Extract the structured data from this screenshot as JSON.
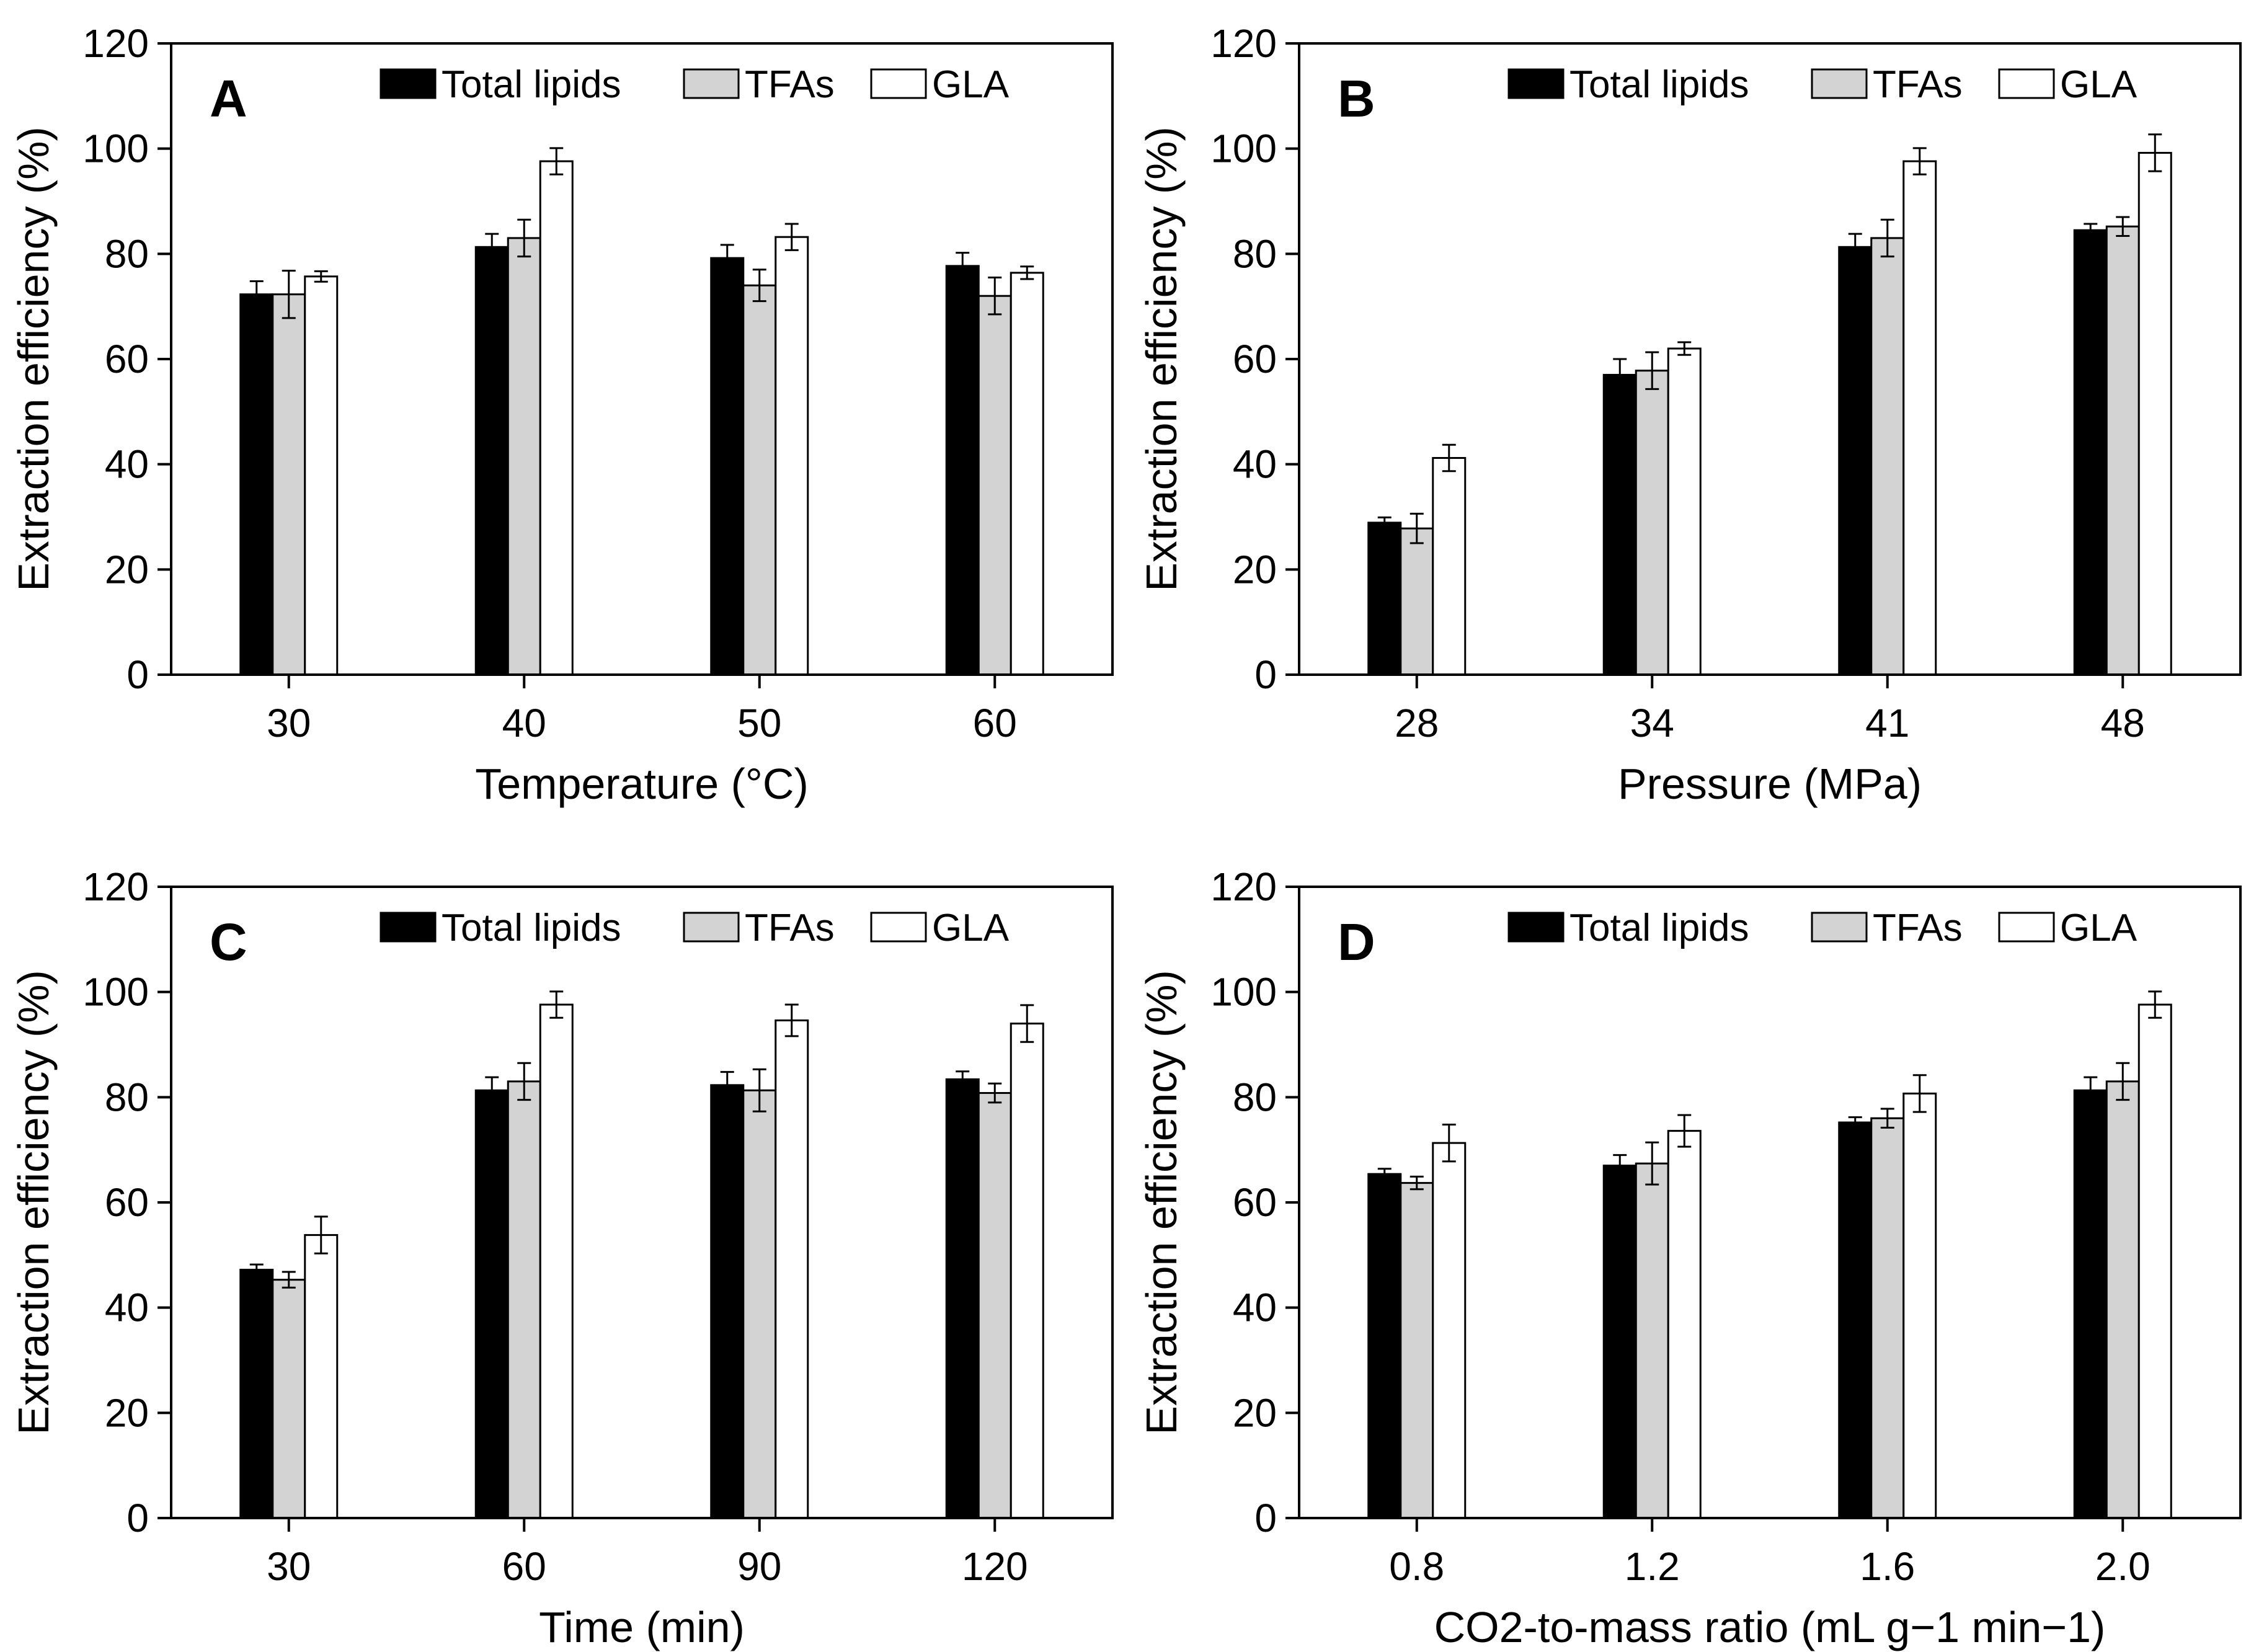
{
  "figure_caption": "",
  "chart_data": [
    {
      "id": "A",
      "type": "bar",
      "panel_label": "A",
      "title": "",
      "xlabel": "Temperature (°C)",
      "ylabel": "Extraction efficiency (%)",
      "ylim": [
        0,
        120
      ],
      "yticks": [
        0,
        20,
        40,
        60,
        80,
        100,
        120
      ],
      "categories": [
        "30",
        "40",
        "50",
        "60"
      ],
      "legend": "top-right",
      "grid": false,
      "series": [
        {
          "name": "Total lipids",
          "color": "#000000",
          "values": [
            72.3,
            81.3,
            79.2,
            77.7
          ],
          "errors": [
            2.5,
            2.5,
            2.5,
            2.5
          ]
        },
        {
          "name": "TFAs",
          "color": "#d3d3d3",
          "values": [
            72.3,
            83.0,
            74.0,
            72.0
          ],
          "errors": [
            4.5,
            3.5,
            3.0,
            3.5
          ]
        },
        {
          "name": "GLA",
          "color": "#ffffff",
          "values": [
            75.7,
            97.6,
            83.2,
            76.4
          ],
          "errors": [
            1.0,
            2.5,
            2.5,
            1.2
          ]
        }
      ]
    },
    {
      "id": "B",
      "type": "bar",
      "panel_label": "B",
      "title": "",
      "xlabel": "Pressure (MPa)",
      "ylabel": "Extraction efficiency (%)",
      "ylim": [
        0,
        120
      ],
      "yticks": [
        0,
        20,
        40,
        60,
        80,
        100,
        120
      ],
      "categories": [
        "28",
        "34",
        "41",
        "48"
      ],
      "legend": "top-right",
      "grid": false,
      "series": [
        {
          "name": "Total lipids",
          "color": "#000000",
          "values": [
            28.9,
            57.0,
            81.3,
            84.5
          ],
          "errors": [
            1.0,
            3.0,
            2.5,
            1.2
          ]
        },
        {
          "name": "TFAs",
          "color": "#d3d3d3",
          "values": [
            27.8,
            57.8,
            83.0,
            85.2
          ],
          "errors": [
            2.8,
            3.5,
            3.5,
            1.8
          ]
        },
        {
          "name": "GLA",
          "color": "#ffffff",
          "values": [
            41.2,
            62.0,
            97.6,
            99.2
          ],
          "errors": [
            2.5,
            1.2,
            2.5,
            3.5
          ]
        }
      ]
    },
    {
      "id": "C",
      "type": "bar",
      "panel_label": "C",
      "title": "",
      "xlabel": "Time (min)",
      "ylabel": "Extraction efficiency (%)",
      "ylim": [
        0,
        120
      ],
      "yticks": [
        0,
        20,
        40,
        60,
        80,
        100,
        120
      ],
      "categories": [
        "30",
        "60",
        "90",
        "120"
      ],
      "legend": "top-right",
      "grid": false,
      "series": [
        {
          "name": "Total lipids",
          "color": "#000000",
          "values": [
            47.2,
            81.3,
            82.3,
            83.4
          ],
          "errors": [
            1.0,
            2.5,
            2.5,
            1.5
          ]
        },
        {
          "name": "TFAs",
          "color": "#d3d3d3",
          "values": [
            45.3,
            83.0,
            81.3,
            80.8
          ],
          "errors": [
            1.5,
            3.5,
            4.0,
            1.8
          ]
        },
        {
          "name": "GLA",
          "color": "#ffffff",
          "values": [
            53.8,
            97.6,
            94.6,
            94.0
          ],
          "errors": [
            3.5,
            2.5,
            3.0,
            3.5
          ]
        }
      ]
    },
    {
      "id": "D",
      "type": "bar",
      "panel_label": "D",
      "title": "",
      "xlabel": "CO2-to-mass ratio (mL g−1 min−1)",
      "ylabel": "Extraction efficiency (%)",
      "ylim": [
        0,
        120
      ],
      "yticks": [
        0,
        20,
        40,
        60,
        80,
        100,
        120
      ],
      "categories": [
        "0.8",
        "1.2",
        "1.6",
        "2.0"
      ],
      "legend": "top-right",
      "grid": false,
      "series": [
        {
          "name": "Total lipids",
          "color": "#000000",
          "values": [
            65.4,
            67.0,
            75.2,
            81.3
          ],
          "errors": [
            1.0,
            2.0,
            1.0,
            2.5
          ]
        },
        {
          "name": "TFAs",
          "color": "#d3d3d3",
          "values": [
            63.7,
            67.4,
            76.0,
            83.0
          ],
          "errors": [
            1.2,
            4.0,
            1.8,
            3.5
          ]
        },
        {
          "name": "GLA",
          "color": "#ffffff",
          "values": [
            71.3,
            73.6,
            80.7,
            97.6
          ],
          "errors": [
            3.5,
            3.0,
            3.5,
            2.5
          ]
        }
      ]
    }
  ]
}
